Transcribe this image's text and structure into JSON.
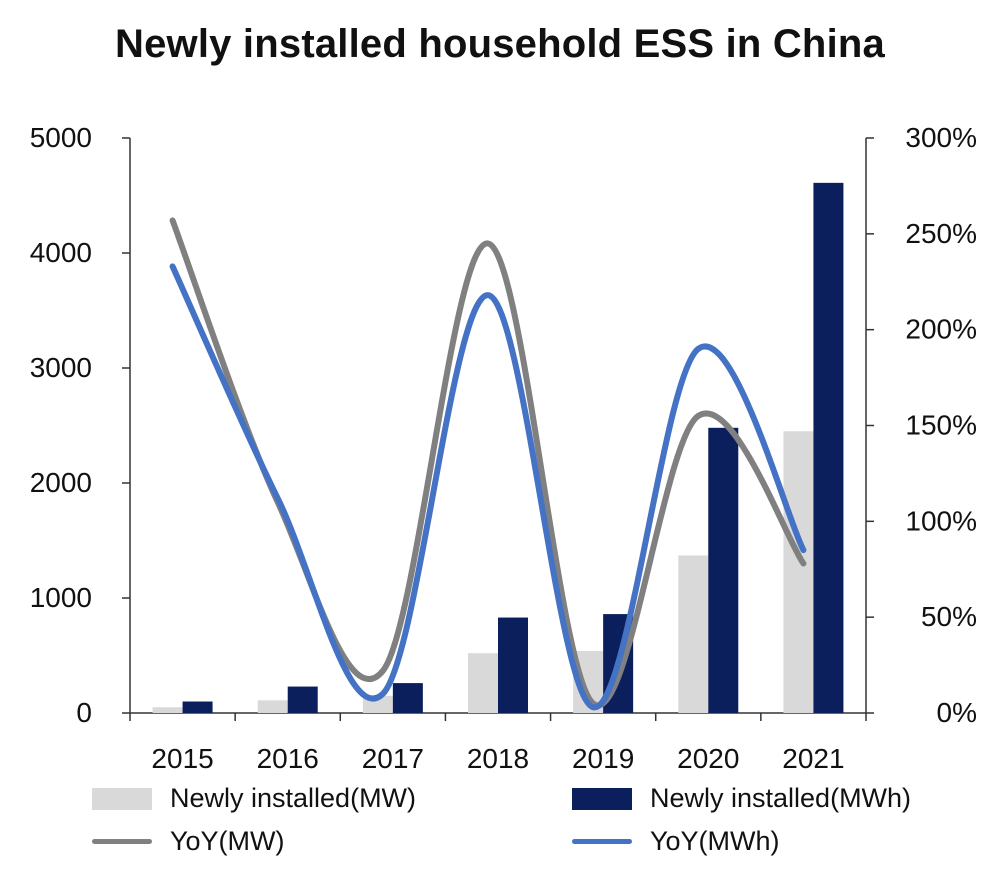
{
  "chart_data": {
    "type": "bar",
    "title": "Newly installed household ESS in China",
    "categories": [
      "2015",
      "2016",
      "2017",
      "2018",
      "2019",
      "2020",
      "2021"
    ],
    "series": [
      {
        "name": "Newly installed(MW)",
        "kind": "bar",
        "axis": "left",
        "color": "#d9d9d9",
        "values": [
          50,
          110,
          150,
          520,
          540,
          1370,
          2450
        ]
      },
      {
        "name": "Newly installed(MWh)",
        "kind": "bar",
        "axis": "left",
        "color": "#0b1f5c",
        "values": [
          100,
          230,
          260,
          830,
          860,
          2480,
          4610
        ]
      },
      {
        "name": "YoY(MW)",
        "kind": "line",
        "axis": "right",
        "color": "#808080",
        "values": [
          2.57,
          1.1,
          0.22,
          2.45,
          0.05,
          1.55,
          0.78
        ]
      },
      {
        "name": "YoY(MWh)",
        "kind": "line",
        "axis": "right",
        "color": "#4472c4",
        "values": [
          2.33,
          1.12,
          0.1,
          2.18,
          0.03,
          1.9,
          0.85
        ]
      }
    ],
    "y_left": {
      "min": 0,
      "max": 5000,
      "ticks": [
        "0",
        "1000",
        "2000",
        "3000",
        "4000",
        "5000"
      ]
    },
    "y_right": {
      "min": 0,
      "max": 3,
      "ticks": [
        "0%",
        "50%",
        "100%",
        "150%",
        "200%",
        "250%",
        "300%"
      ]
    },
    "grid": false,
    "legend_position": "bottom"
  }
}
